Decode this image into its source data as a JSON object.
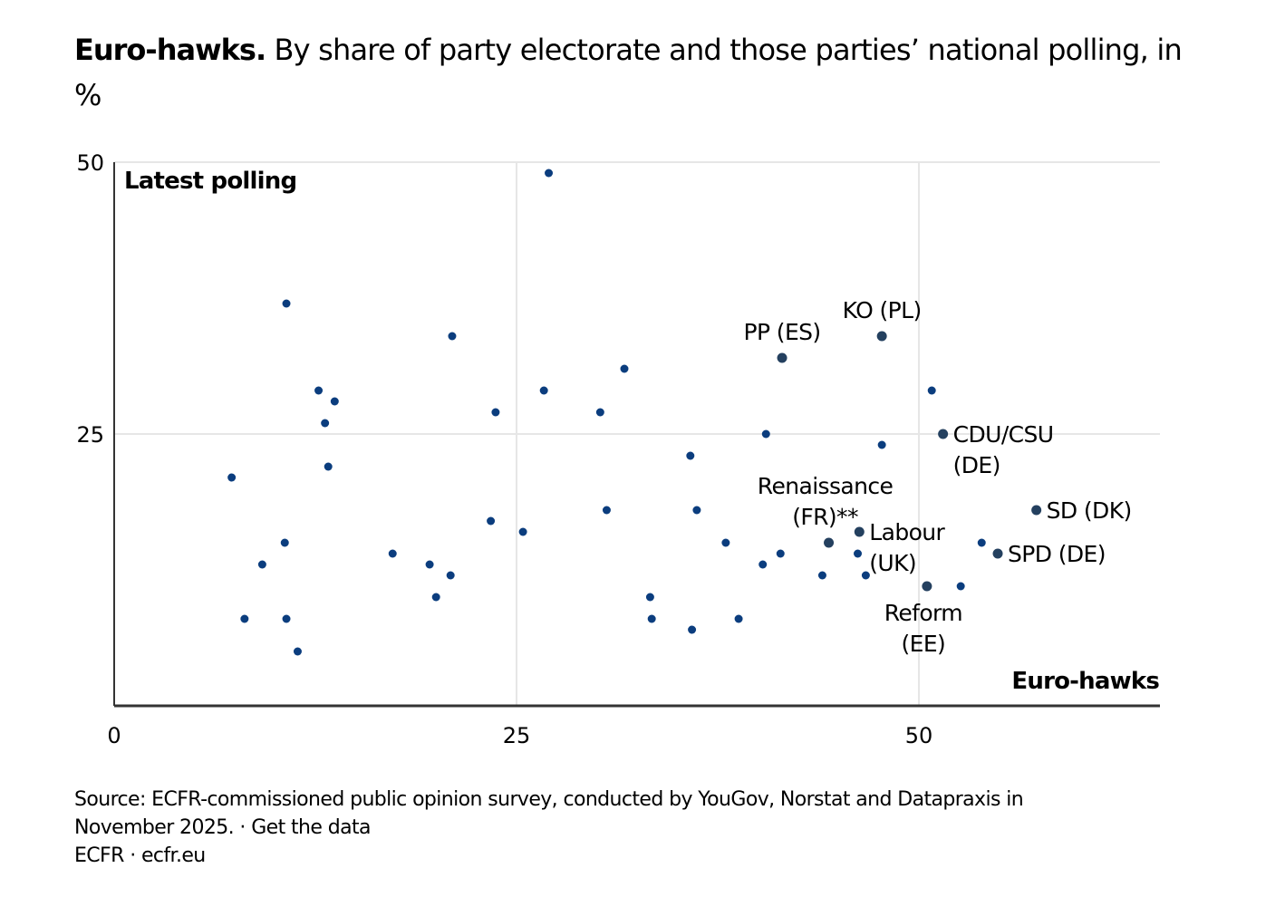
{
  "title": {
    "bold": "Euro-hawks.",
    "rest": "By share of party electorate and those parties’ national polling, in %"
  },
  "footer": {
    "source": "Source: ECFR-commissioned public opinion survey, conducted by YouGov, Norstat and Datapraxis in",
    "source_line2": "November 2025.",
    "separator": " · ",
    "get_data_link": "Get the data",
    "credit": "ECFR · ecfr.eu"
  },
  "colors": {
    "dot": "#0b3d7e",
    "labelled_dot": "#24405f",
    "grid": "#e6e6e6",
    "axis": "#333333"
  },
  "chart_data": {
    "type": "scatter",
    "title": "Euro-hawks. By share of party electorate and those parties’ national polling, in %",
    "xlabel": "Euro-hawks",
    "ylabel": "Latest polling",
    "xlim": [
      0,
      65
    ],
    "ylim": [
      0,
      50
    ],
    "xticks": [
      0,
      25,
      50
    ],
    "yticks": [
      25,
      50
    ],
    "grid": true,
    "points": [
      {
        "x": 27.0,
        "y": 49
      },
      {
        "x": 10.7,
        "y": 37
      },
      {
        "x": 21.0,
        "y": 34
      },
      {
        "x": 31.7,
        "y": 31
      },
      {
        "x": 12.7,
        "y": 29
      },
      {
        "x": 26.7,
        "y": 29
      },
      {
        "x": 13.7,
        "y": 28
      },
      {
        "x": 23.7,
        "y": 27
      },
      {
        "x": 30.2,
        "y": 27
      },
      {
        "x": 13.1,
        "y": 26
      },
      {
        "x": 40.5,
        "y": 25
      },
      {
        "x": 47.7,
        "y": 24
      },
      {
        "x": 35.8,
        "y": 23
      },
      {
        "x": 13.3,
        "y": 22
      },
      {
        "x": 7.3,
        "y": 21
      },
      {
        "x": 30.6,
        "y": 18
      },
      {
        "x": 36.2,
        "y": 18
      },
      {
        "x": 23.4,
        "y": 17
      },
      {
        "x": 25.4,
        "y": 16
      },
      {
        "x": 10.6,
        "y": 15
      },
      {
        "x": 38.0,
        "y": 15
      },
      {
        "x": 53.9,
        "y": 15
      },
      {
        "x": 17.3,
        "y": 14
      },
      {
        "x": 41.4,
        "y": 14
      },
      {
        "x": 46.2,
        "y": 14
      },
      {
        "x": 9.2,
        "y": 13
      },
      {
        "x": 19.6,
        "y": 13
      },
      {
        "x": 40.3,
        "y": 13
      },
      {
        "x": 20.9,
        "y": 12
      },
      {
        "x": 44.0,
        "y": 12
      },
      {
        "x": 46.7,
        "y": 12
      },
      {
        "x": 52.6,
        "y": 11
      },
      {
        "x": 20.0,
        "y": 10
      },
      {
        "x": 33.3,
        "y": 10
      },
      {
        "x": 8.1,
        "y": 8
      },
      {
        "x": 10.7,
        "y": 8
      },
      {
        "x": 33.4,
        "y": 8
      },
      {
        "x": 38.8,
        "y": 8
      },
      {
        "x": 35.9,
        "y": 7
      },
      {
        "x": 11.4,
        "y": 5
      },
      {
        "x": 50.8,
        "y": 29
      }
    ],
    "labelled_points": [
      {
        "label": "KO (PL)",
        "lines": [
          "KO (PL)"
        ],
        "x": 47.7,
        "y": 34,
        "pos": "above"
      },
      {
        "label": "PP (ES)",
        "lines": [
          "PP (ES)"
        ],
        "x": 41.5,
        "y": 32,
        "pos": "above"
      },
      {
        "label": "CDU/CSU (DE)",
        "lines": [
          "CDU/CSU",
          "(DE)"
        ],
        "x": 51.5,
        "y": 25,
        "pos": "right"
      },
      {
        "label": "SD (DK)",
        "lines": [
          "SD (DK)"
        ],
        "x": 57.3,
        "y": 18,
        "pos": "right"
      },
      {
        "label": "Renaissance (FR)**",
        "lines": [
          "Renaissance",
          "(FR)**"
        ],
        "x": 44.4,
        "y": 15,
        "pos": "above"
      },
      {
        "label": "Labour (UK)",
        "lines": [
          "Labour",
          "(UK)"
        ],
        "x": 46.3,
        "y": 16,
        "pos": "right"
      },
      {
        "label": "SPD (DE)",
        "lines": [
          "SPD (DE)"
        ],
        "x": 54.9,
        "y": 14,
        "pos": "right"
      },
      {
        "label": "Reform (EE)",
        "lines": [
          "Reform",
          "(EE)"
        ],
        "x": 50.5,
        "y": 11,
        "pos": "below"
      }
    ]
  }
}
